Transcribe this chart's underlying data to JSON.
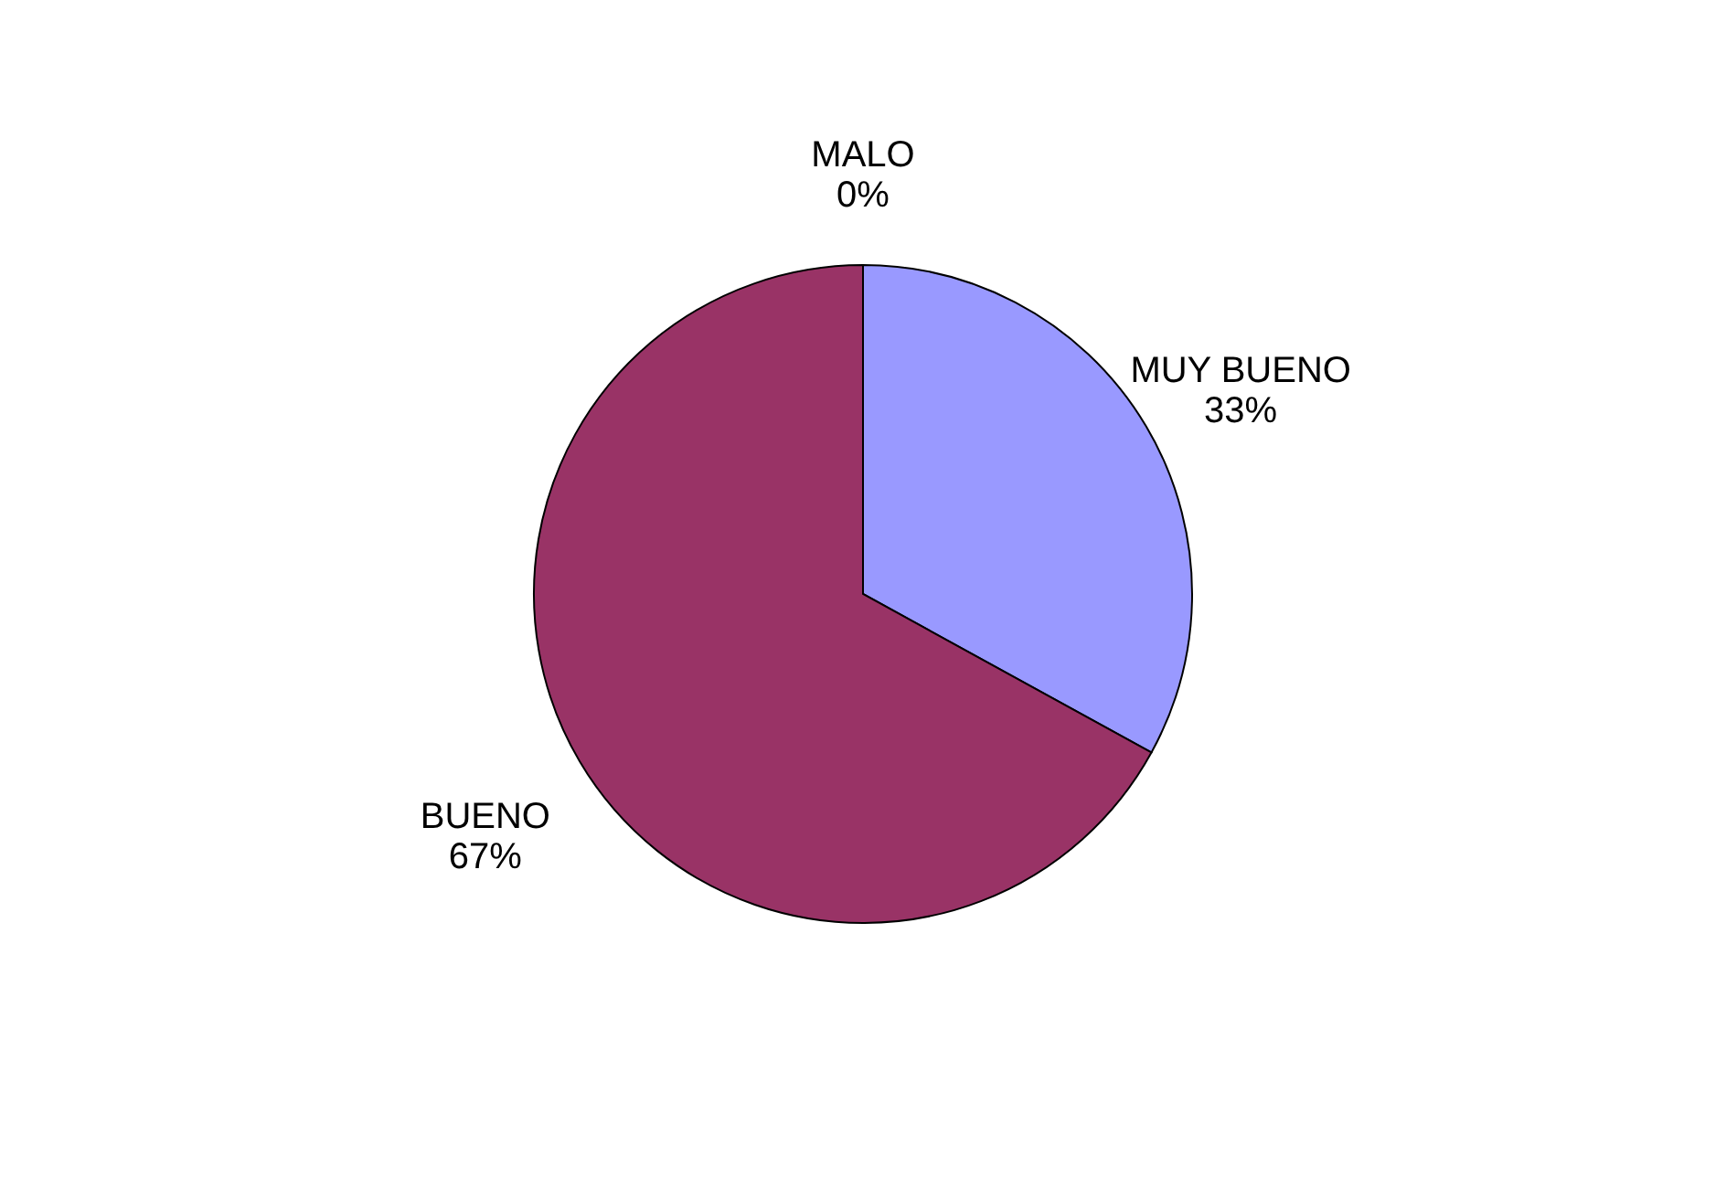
{
  "chart_data": {
    "type": "pie",
    "categories": [
      "MUY BUENO",
      "BUENO",
      "MALO"
    ],
    "values": [
      33,
      67,
      0
    ],
    "colors": [
      "#9999ff",
      "#993366",
      "#ffffcc"
    ],
    "value_labels": [
      "33%",
      "67%",
      "0%"
    ],
    "legend": false
  }
}
